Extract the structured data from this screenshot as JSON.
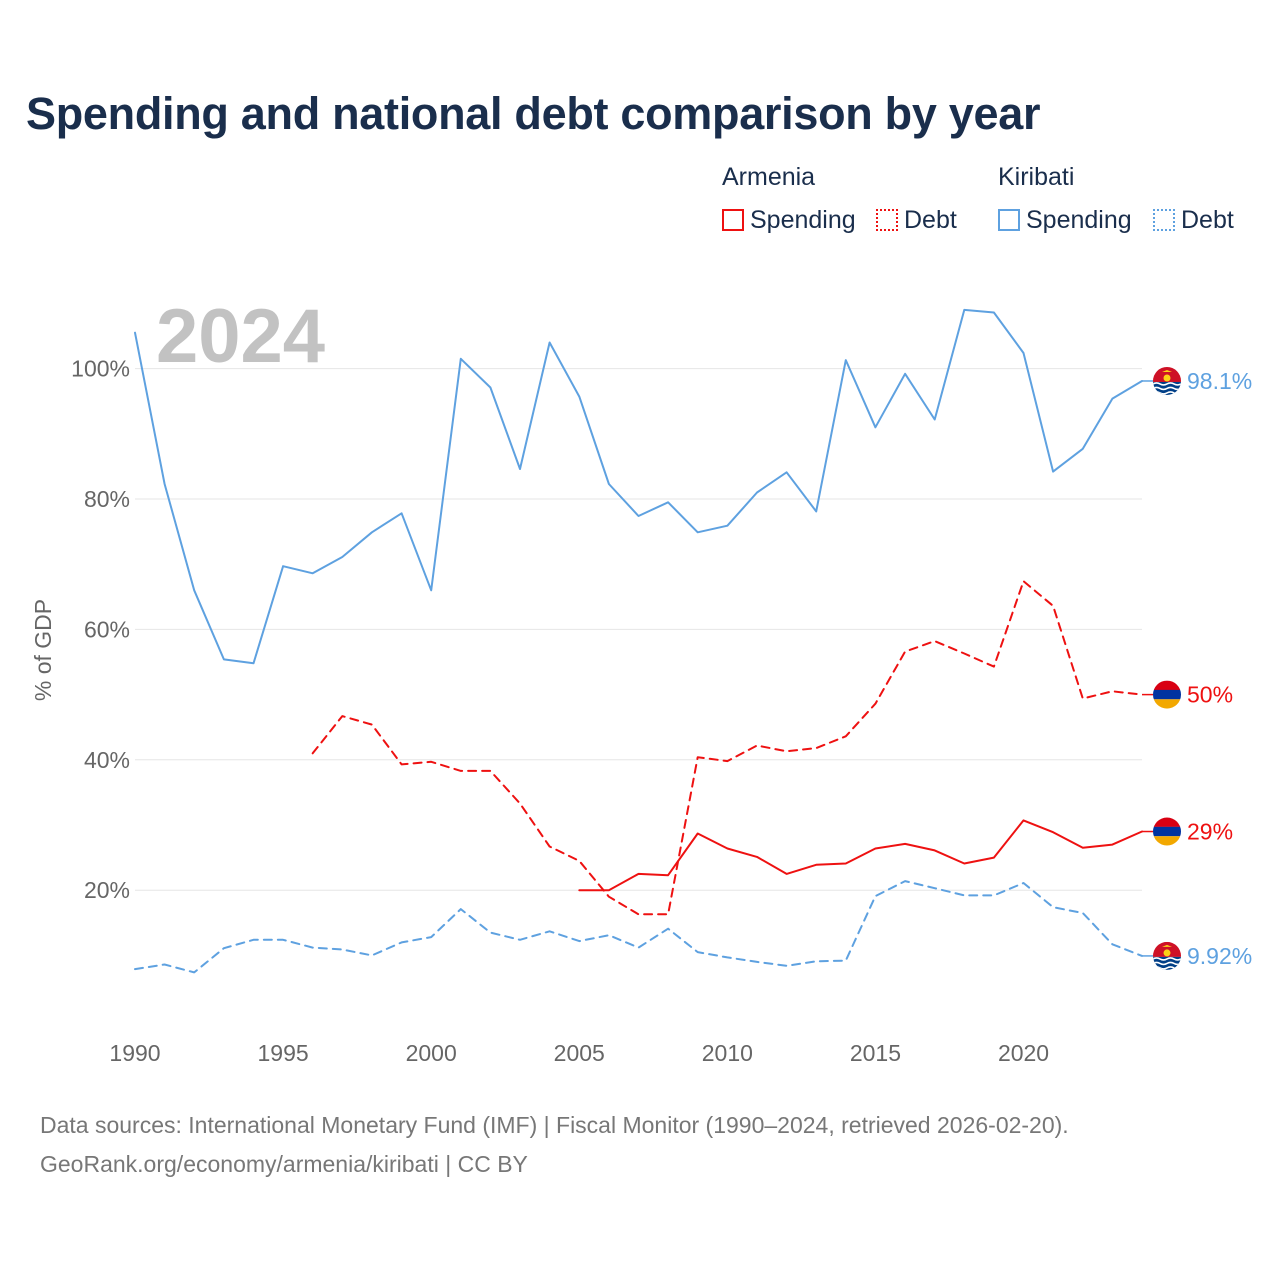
{
  "chart_data": {
    "type": "line",
    "title": "Spending and national debt comparison by year",
    "year_label": "2024",
    "ylabel": "% of GDP",
    "xlim": [
      1990,
      2024
    ],
    "ylim": [
      0,
      110
    ],
    "x_ticks": [
      1990,
      1995,
      2000,
      2005,
      2010,
      2015,
      2020
    ],
    "y_ticks": [
      20,
      40,
      60,
      80,
      100
    ],
    "y_tick_labels": [
      "20%",
      "40%",
      "60%",
      "80%",
      "100%"
    ],
    "grid": true,
    "legend": {
      "groups": [
        {
          "country": "Armenia",
          "items": [
            "Spending",
            "Debt"
          ]
        },
        {
          "country": "Kiribati",
          "items": [
            "Spending",
            "Debt"
          ]
        }
      ],
      "placement": "top-right"
    },
    "series": [
      {
        "name": "Kiribati Spending",
        "country": "Kiribati",
        "metric": "Spending",
        "color": "#5ea1e0",
        "dashed": false,
        "x": [
          1990,
          1991,
          1992,
          1993,
          1994,
          1995,
          1996,
          1997,
          1998,
          1999,
          2000,
          2001,
          2002,
          2003,
          2004,
          2005,
          2006,
          2007,
          2008,
          2009,
          2010,
          2011,
          2012,
          2013,
          2014,
          2015,
          2016,
          2017,
          2018,
          2019,
          2020,
          2021,
          2022,
          2023,
          2024
        ],
        "values": [
          105.5,
          82.3,
          66.0,
          55.4,
          54.8,
          69.7,
          68.6,
          71.1,
          74.9,
          77.8,
          66.0,
          101.5,
          97.1,
          84.6,
          104.0,
          95.7,
          82.3,
          77.4,
          79.5,
          74.9,
          75.9,
          81.0,
          84.1,
          78.1,
          101.3,
          91.0,
          99.2,
          92.2,
          109.0,
          108.6,
          102.4,
          84.2,
          87.7,
          95.4,
          98.1
        ],
        "end_label": "98.1%"
      },
      {
        "name": "Armenia Debt",
        "country": "Armenia",
        "metric": "Debt",
        "color": "#ee1111",
        "dashed": true,
        "x": [
          1996,
          1997,
          1998,
          1999,
          2000,
          2001,
          2002,
          2003,
          2004,
          2005,
          2006,
          2007,
          2008,
          2009,
          2010,
          2011,
          2012,
          2013,
          2014,
          2015,
          2016,
          2017,
          2018,
          2019,
          2020,
          2021,
          2022,
          2023,
          2024
        ],
        "values": [
          41.0,
          46.7,
          45.4,
          39.3,
          39.7,
          38.3,
          38.3,
          33.3,
          26.7,
          24.5,
          19.0,
          16.3,
          16.3,
          40.4,
          39.8,
          42.2,
          41.3,
          41.8,
          43.6,
          48.6,
          56.6,
          58.2,
          56.3,
          54.3,
          67.4,
          63.6,
          49.4,
          50.5,
          50.0
        ],
        "end_label": "50%"
      },
      {
        "name": "Armenia Spending",
        "country": "Armenia",
        "metric": "Spending",
        "color": "#ee1111",
        "dashed": false,
        "x": [
          2005,
          2006,
          2007,
          2008,
          2009,
          2010,
          2011,
          2012,
          2013,
          2014,
          2015,
          2016,
          2017,
          2018,
          2019,
          2020,
          2021,
          2022,
          2023,
          2024
        ],
        "values": [
          20.0,
          20.0,
          22.5,
          22.3,
          28.7,
          26.4,
          25.1,
          22.5,
          23.9,
          24.1,
          26.4,
          27.1,
          26.1,
          24.1,
          25.0,
          30.7,
          28.9,
          26.5,
          27.0,
          29.0
        ],
        "end_label": "29%"
      },
      {
        "name": "Kiribati Debt",
        "country": "Kiribati",
        "metric": "Debt",
        "color": "#5ea1e0",
        "dashed": true,
        "x": [
          1990,
          1991,
          1992,
          1993,
          1994,
          1995,
          1996,
          1997,
          1998,
          1999,
          2000,
          2001,
          2002,
          2003,
          2004,
          2005,
          2006,
          2007,
          2008,
          2009,
          2010,
          2011,
          2012,
          2013,
          2014,
          2015,
          2016,
          2017,
          2018,
          2019,
          2020,
          2021,
          2022,
          2023,
          2024
        ],
        "values": [
          7.9,
          8.6,
          7.4,
          11.1,
          12.4,
          12.4,
          11.2,
          10.9,
          10.0,
          12.0,
          12.8,
          17.1,
          13.5,
          12.4,
          13.7,
          12.2,
          13.1,
          11.2,
          14.1,
          10.5,
          9.7,
          9.0,
          8.4,
          9.1,
          9.2,
          19.1,
          21.4,
          20.3,
          19.2,
          19.2,
          21.1,
          17.4,
          16.5,
          11.7,
          9.92
        ],
        "end_label": "9.92%"
      }
    ]
  },
  "legend_swatch_colors": {
    "armenia": "#ee1111",
    "kiribati": "#5ea1e0"
  },
  "footer": {
    "source_line": "Data sources: International Monetary Fund (IMF) | Fiscal Monitor (1990–2024, retrieved 2026-02-20).",
    "url_line": "GeoRank.org/economy/armenia/kiribati | CC BY"
  }
}
